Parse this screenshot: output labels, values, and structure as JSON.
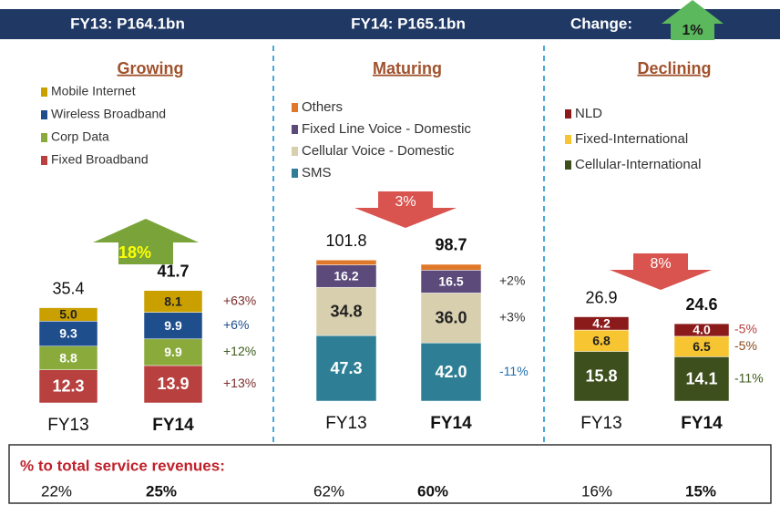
{
  "header": {
    "items": [
      "FY13: P164.1bn",
      "FY14: P165.1bn",
      "Change:"
    ],
    "change": "1%"
  },
  "chart_data": [
    {
      "type": "stacked-bar",
      "title": "Growing",
      "categories": [
        "FY13",
        "FY14"
      ],
      "totals": [
        35.4,
        41.7
      ],
      "trend": {
        "label": "18%",
        "direction": "up"
      },
      "series": [
        {
          "name": "Fixed Broadband",
          "color": "#b8403f",
          "values": [
            12.3,
            13.9
          ],
          "value_labels": [
            "12.3",
            "13.9"
          ],
          "change": "+13%",
          "change_color": "#7b2c2c"
        },
        {
          "name": "Corp Data",
          "color": "#8aab3c",
          "values": [
            8.8,
            9.9
          ],
          "value_labels": [
            "8.8",
            "9.9"
          ],
          "change": "+12%",
          "change_color": "#3d5a1c"
        },
        {
          "name": "Wireless Broadband",
          "color": "#1f4e8c",
          "values": [
            9.3,
            9.9
          ],
          "value_labels": [
            "9.3",
            "9.9"
          ],
          "change": "+6%",
          "change_color": "#1f4e8c"
        },
        {
          "name": "Mobile Internet",
          "color": "#c9a000",
          "values": [
            5.0,
            8.1
          ],
          "value_labels": [
            "5.0",
            "8.1"
          ],
          "change": "+63%",
          "change_color": "#7b2c2c"
        }
      ],
      "share_labels": [
        "22%",
        "25%"
      ]
    },
    {
      "type": "stacked-bar",
      "title": "Maturing",
      "categories": [
        "FY13",
        "FY14"
      ],
      "totals": [
        101.8,
        98.7
      ],
      "trend": {
        "label": "3%",
        "direction": "down"
      },
      "series": [
        {
          "name": "SMS",
          "color": "#2e7f95",
          "values": [
            47.3,
            42.0
          ],
          "value_labels": [
            "47.3",
            "42.0"
          ],
          "change": "-11%",
          "change_color": "#1f6fb0"
        },
        {
          "name": "Cellular Voice - Domestic",
          "color": "#d8cfae",
          "values": [
            34.8,
            36.0
          ],
          "value_labels": [
            "34.8",
            "36.0"
          ],
          "change": "+3%",
          "change_color": "#333333"
        },
        {
          "name": "Fixed Line Voice - Domestic",
          "color": "#5b4a7a",
          "values": [
            16.2,
            16.5
          ],
          "value_labels": [
            "16.2",
            "16.5"
          ],
          "change": "+2%",
          "change_color": "#333333"
        },
        {
          "name": "Others",
          "color": "#e0782a",
          "values": [
            3.5,
            4.2
          ],
          "value_labels": [
            null,
            null
          ],
          "change": null,
          "change_color": "#333333"
        }
      ],
      "share_labels": [
        "62%",
        "60%"
      ]
    },
    {
      "type": "stacked-bar",
      "title": "Declining",
      "categories": [
        "FY13",
        "FY14"
      ],
      "totals": [
        26.9,
        24.6
      ],
      "trend": {
        "label": "8%",
        "direction": "down"
      },
      "series": [
        {
          "name": "Cellular-International",
          "color": "#3d4f1c",
          "values": [
            15.8,
            14.1
          ],
          "value_labels": [
            "15.8",
            "14.1"
          ],
          "change": "-11%",
          "change_color": "#3d5a1c"
        },
        {
          "name": "Fixed-International",
          "color": "#f7c531",
          "values": [
            6.8,
            6.5
          ],
          "value_labels": [
            "6.8",
            "6.5"
          ],
          "change": "-5%",
          "change_color": "#8b4a1a"
        },
        {
          "name": "NLD",
          "color": "#8b1a1a",
          "values": [
            4.2,
            4.0
          ],
          "value_labels": [
            "4.2",
            "4.0"
          ],
          "change": "-5%",
          "change_color": "#b8403f"
        }
      ],
      "share_labels": [
        "16%",
        "15%"
      ]
    }
  ],
  "footer": {
    "title": "% to total service revenues:"
  }
}
